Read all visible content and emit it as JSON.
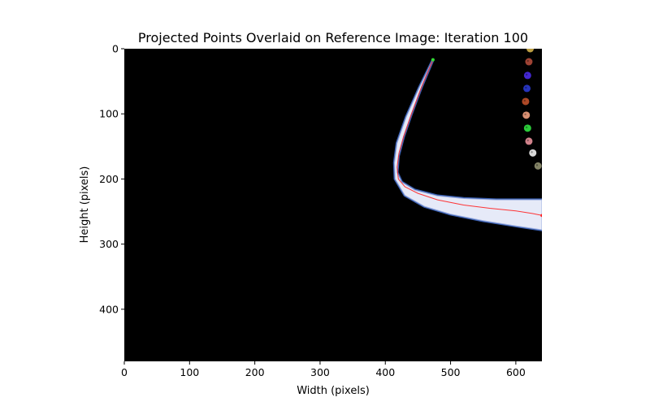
{
  "chart_data": {
    "type": "scatter",
    "title": "Projected Points Overlaid on Reference Image: Iteration 100",
    "xlabel": "Width (pixels)",
    "ylabel": "Height (pixels)",
    "xlim": [
      0,
      640
    ],
    "ylim": [
      480,
      0
    ],
    "x_ticks": [
      0,
      100,
      200,
      300,
      400,
      500,
      600
    ],
    "y_ticks": [
      0,
      100,
      200,
      300,
      400
    ],
    "grid": false,
    "background": "#000000",
    "colors": {
      "band_outer": "#3a5fb0",
      "band_fill": "#e6eaf8",
      "trajectory": "#ff2020",
      "start_marker": "#33dd33"
    },
    "band": {
      "upper_edge": [
        [
          473,
          17
        ],
        [
          455,
          60
        ],
        [
          440,
          100
        ],
        [
          428,
          135
        ],
        [
          420,
          165
        ],
        [
          418,
          190
        ],
        [
          425,
          205
        ],
        [
          445,
          217
        ],
        [
          480,
          226
        ],
        [
          520,
          230
        ],
        [
          570,
          232
        ],
        [
          640,
          232
        ]
      ],
      "lower_edge": [
        [
          640,
          278
        ],
        [
          600,
          272
        ],
        [
          550,
          264
        ],
        [
          500,
          254
        ],
        [
          460,
          242
        ],
        [
          430,
          225
        ],
        [
          415,
          200
        ],
        [
          414,
          175
        ],
        [
          418,
          145
        ],
        [
          432,
          105
        ],
        [
          452,
          60
        ],
        [
          473,
          17
        ]
      ]
    },
    "trajectory": [
      [
        473,
        17
      ],
      [
        455,
        60
      ],
      [
        440,
        100
      ],
      [
        428,
        135
      ],
      [
        421,
        160
      ],
      [
        418,
        182
      ],
      [
        420,
        200
      ],
      [
        430,
        212
      ],
      [
        450,
        222
      ],
      [
        480,
        232
      ],
      [
        520,
        240
      ],
      [
        560,
        245
      ],
      [
        600,
        249
      ],
      [
        625,
        253
      ],
      [
        640,
        256
      ]
    ],
    "start_point": [
      473,
      17
    ],
    "end_point": [
      640,
      256
    ],
    "markers": [
      {
        "x": 622,
        "y": 0,
        "color": "#d2b04a"
      },
      {
        "x": 620,
        "y": 20,
        "color": "#b04a3a"
      },
      {
        "x": 618,
        "y": 41,
        "color": "#4a2be8"
      },
      {
        "x": 617,
        "y": 61,
        "color": "#2a3ad0"
      },
      {
        "x": 615,
        "y": 81,
        "color": "#c0502a"
      },
      {
        "x": 616,
        "y": 102,
        "color": "#f0a080"
      },
      {
        "x": 618,
        "y": 122,
        "color": "#30e040"
      },
      {
        "x": 620,
        "y": 142,
        "color": "#e8909a"
      },
      {
        "x": 626,
        "y": 160,
        "color": "#f0f0f0"
      },
      {
        "x": 634,
        "y": 180,
        "color": "#909070"
      }
    ]
  }
}
